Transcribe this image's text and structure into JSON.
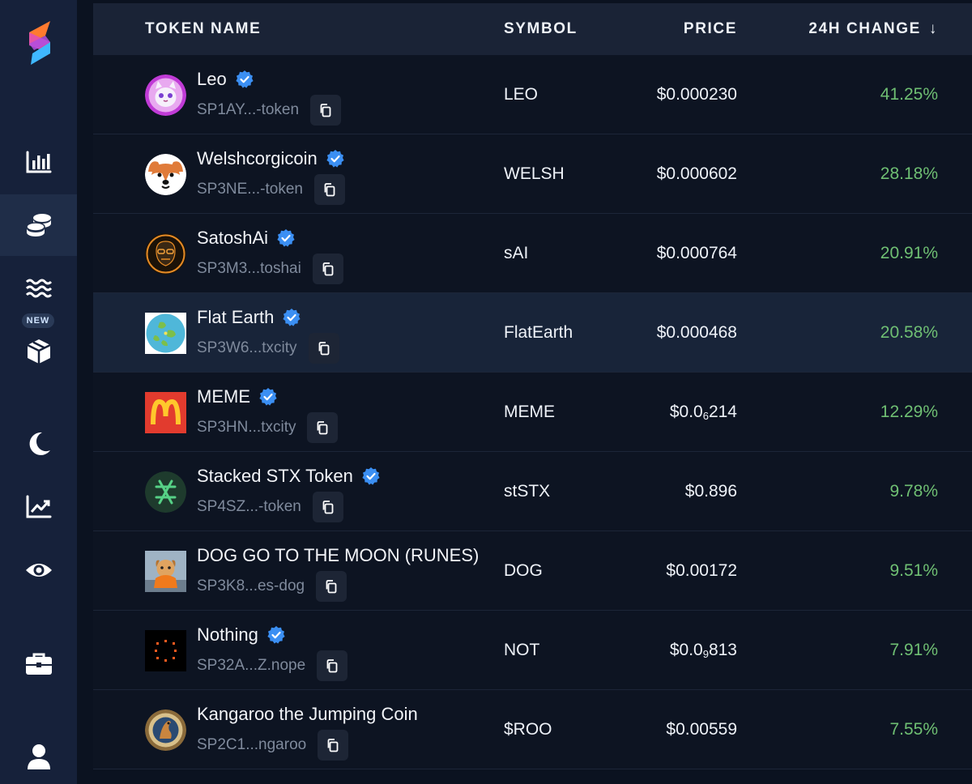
{
  "sidebar": {
    "new_badge": "NEW",
    "items": [
      {
        "name": "bar-chart-icon"
      },
      {
        "name": "coins-icon",
        "active": true
      },
      {
        "name": "waves-icon"
      },
      {
        "name": "box-icon"
      },
      {
        "name": "moon-icon"
      },
      {
        "name": "trending-chart-icon"
      },
      {
        "name": "eye-icon"
      },
      {
        "name": "briefcase-icon"
      },
      {
        "name": "user-icon"
      }
    ]
  },
  "table": {
    "headers": {
      "name": "TOKEN NAME",
      "symbol": "SYMBOL",
      "price": "PRICE",
      "change": "24H CHANGE",
      "sort_arrow": "↓"
    },
    "rows": [
      {
        "name": "Leo",
        "address": "SP1AY...-token",
        "symbol": "LEO",
        "price_main": "$0.000230",
        "price_sub": "",
        "price_rest": "",
        "change": "41.25%",
        "verified": true,
        "avatar": "leo-cat"
      },
      {
        "name": "Welshcorgicoin",
        "address": "SP3NE...-token",
        "symbol": "WELSH",
        "price_main": "$0.000602",
        "price_sub": "",
        "price_rest": "",
        "change": "28.18%",
        "verified": true,
        "avatar": "corgi"
      },
      {
        "name": "SatoshAi",
        "address": "SP3M3...toshai",
        "symbol": "sAI",
        "price_main": "$0.000764",
        "price_sub": "",
        "price_rest": "",
        "change": "20.91%",
        "verified": true,
        "avatar": "satoshai"
      },
      {
        "name": "Flat Earth",
        "address": "SP3W6...txcity",
        "symbol": "FlatEarth",
        "price_main": "$0.000468",
        "price_sub": "",
        "price_rest": "",
        "change": "20.58%",
        "verified": true,
        "avatar": "flat-earth",
        "hovered": true
      },
      {
        "name": "MEME",
        "address": "SP3HN...txcity",
        "symbol": "MEME",
        "price_main": "$0.0",
        "price_sub": "6",
        "price_rest": "214",
        "change": "12.29%",
        "verified": true,
        "avatar": "meme-m"
      },
      {
        "name": "Stacked STX Token",
        "address": "SP4SZ...-token",
        "symbol": "stSTX",
        "price_main": "$0.896",
        "price_sub": "",
        "price_rest": "",
        "change": "9.78%",
        "verified": true,
        "avatar": "ststx"
      },
      {
        "name": "DOG GO TO THE MOON (RUNES)",
        "address": "SP3K8...es-dog",
        "symbol": "DOG",
        "price_main": "$0.00172",
        "price_sub": "",
        "price_rest": "",
        "change": "9.51%",
        "verified": false,
        "avatar": "dog"
      },
      {
        "name": "Nothing",
        "address": "SP32A...Z.nope",
        "symbol": "NOT",
        "price_main": "$0.0",
        "price_sub": "9",
        "price_rest": "813",
        "change": "7.91%",
        "verified": true,
        "avatar": "nothing"
      },
      {
        "name": "Kangaroo the Jumping Coin",
        "address": "SP2C1...ngaroo",
        "symbol": "$ROO",
        "price_main": "$0.00559",
        "price_sub": "",
        "price_rest": "",
        "change": "7.55%",
        "verified": false,
        "avatar": "kangaroo"
      }
    ]
  },
  "colors": {
    "positive": "#6fbf73",
    "verified": "#3b8ff3",
    "sidebar_bg": "#16213a",
    "header_bg": "#1a2336",
    "row_bg": "#0d1422"
  }
}
